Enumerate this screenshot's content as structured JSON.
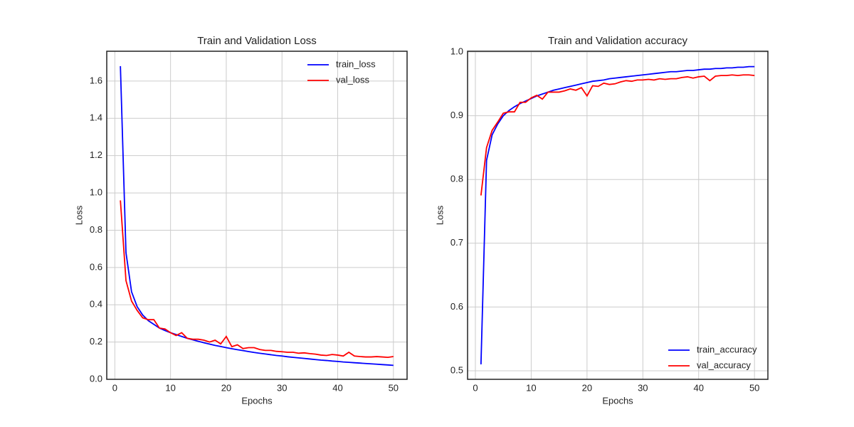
{
  "chart_data": [
    {
      "type": "line",
      "title": "Train and Validation Loss",
      "xlabel": "Epochs",
      "ylabel": "Loss",
      "x": [
        1,
        2,
        3,
        4,
        5,
        6,
        7,
        8,
        9,
        10,
        11,
        12,
        13,
        14,
        15,
        16,
        17,
        18,
        19,
        20,
        21,
        22,
        23,
        24,
        25,
        26,
        27,
        28,
        29,
        30,
        31,
        32,
        33,
        34,
        35,
        36,
        37,
        38,
        39,
        40,
        41,
        42,
        43,
        44,
        45,
        46,
        47,
        48,
        49,
        50
      ],
      "series": [
        {
          "name": "train_loss",
          "color": "#0000ff",
          "values": [
            1.68,
            0.68,
            0.47,
            0.39,
            0.345,
            0.315,
            0.295,
            0.275,
            0.262,
            0.25,
            0.24,
            0.23,
            0.22,
            0.212,
            0.204,
            0.196,
            0.189,
            0.182,
            0.176,
            0.17,
            0.164,
            0.159,
            0.154,
            0.149,
            0.144,
            0.14,
            0.136,
            0.132,
            0.128,
            0.125,
            0.121,
            0.118,
            0.115,
            0.112,
            0.109,
            0.106,
            0.103,
            0.101,
            0.098,
            0.096,
            0.093,
            0.091,
            0.089,
            0.087,
            0.085,
            0.083,
            0.081,
            0.079,
            0.077,
            0.075
          ]
        },
        {
          "name": "val_loss",
          "color": "#ff0000",
          "values": [
            0.96,
            0.53,
            0.42,
            0.37,
            0.33,
            0.32,
            0.32,
            0.275,
            0.27,
            0.25,
            0.235,
            0.25,
            0.22,
            0.215,
            0.215,
            0.21,
            0.2,
            0.21,
            0.19,
            0.23,
            0.175,
            0.185,
            0.165,
            0.17,
            0.17,
            0.16,
            0.155,
            0.155,
            0.15,
            0.148,
            0.145,
            0.145,
            0.14,
            0.142,
            0.138,
            0.135,
            0.13,
            0.128,
            0.133,
            0.13,
            0.125,
            0.145,
            0.125,
            0.122,
            0.12,
            0.12,
            0.122,
            0.12,
            0.118,
            0.122
          ]
        }
      ],
      "xlim": [
        -1.45,
        52.45
      ],
      "ylim": [
        0,
        1.76
      ],
      "xticks": [
        0,
        10,
        20,
        30,
        40,
        50
      ],
      "yticks": [
        {
          "value": 0,
          "label": "0.0"
        },
        0.2,
        0.4,
        0.6,
        0.8,
        {
          "value": 1,
          "label": "1.0"
        },
        1.2,
        1.4,
        1.6
      ],
      "grid": true,
      "legend": "upper right"
    },
    {
      "type": "line",
      "title": "Train and Validation accuracy",
      "xlabel": "Epochs",
      "ylabel": "Loss",
      "x": [
        1,
        2,
        3,
        4,
        5,
        6,
        7,
        8,
        9,
        10,
        11,
        12,
        13,
        14,
        15,
        16,
        17,
        18,
        19,
        20,
        21,
        22,
        23,
        24,
        25,
        26,
        27,
        28,
        29,
        30,
        31,
        32,
        33,
        34,
        35,
        36,
        37,
        38,
        39,
        40,
        41,
        42,
        43,
        44,
        45,
        46,
        47,
        48,
        49,
        50
      ],
      "series": [
        {
          "name": "train_accuracy",
          "color": "#0000ff",
          "values": [
            0.51,
            0.83,
            0.87,
            0.887,
            0.9,
            0.908,
            0.914,
            0.919,
            0.923,
            0.927,
            0.931,
            0.934,
            0.937,
            0.94,
            0.942,
            0.944,
            0.946,
            0.948,
            0.95,
            0.952,
            0.954,
            0.955,
            0.956,
            0.958,
            0.959,
            0.96,
            0.961,
            0.962,
            0.963,
            0.964,
            0.965,
            0.966,
            0.967,
            0.968,
            0.969,
            0.969,
            0.97,
            0.971,
            0.971,
            0.972,
            0.973,
            0.973,
            0.974,
            0.974,
            0.975,
            0.975,
            0.976,
            0.976,
            0.977,
            0.977
          ]
        },
        {
          "name": "val_accuracy",
          "color": "#ff0000",
          "values": [
            0.775,
            0.85,
            0.877,
            0.89,
            0.904,
            0.906,
            0.906,
            0.921,
            0.921,
            0.928,
            0.932,
            0.926,
            0.937,
            0.937,
            0.937,
            0.939,
            0.942,
            0.94,
            0.944,
            0.931,
            0.947,
            0.946,
            0.951,
            0.949,
            0.95,
            0.953,
            0.955,
            0.954,
            0.956,
            0.956,
            0.957,
            0.956,
            0.958,
            0.957,
            0.958,
            0.958,
            0.96,
            0.961,
            0.959,
            0.961,
            0.962,
            0.955,
            0.962,
            0.963,
            0.963,
            0.964,
            0.963,
            0.964,
            0.964,
            0.963
          ]
        }
      ],
      "xlim": [
        -1.4,
        52.4
      ],
      "ylim": [
        0.4866,
        1.0011
      ],
      "xticks": [
        0,
        10,
        20,
        30,
        40,
        50
      ],
      "yticks": [
        0.5,
        0.6,
        0.7,
        0.8,
        0.9,
        {
          "value": 1,
          "label": "1.0"
        }
      ],
      "grid": true,
      "legend": "lower right"
    }
  ]
}
